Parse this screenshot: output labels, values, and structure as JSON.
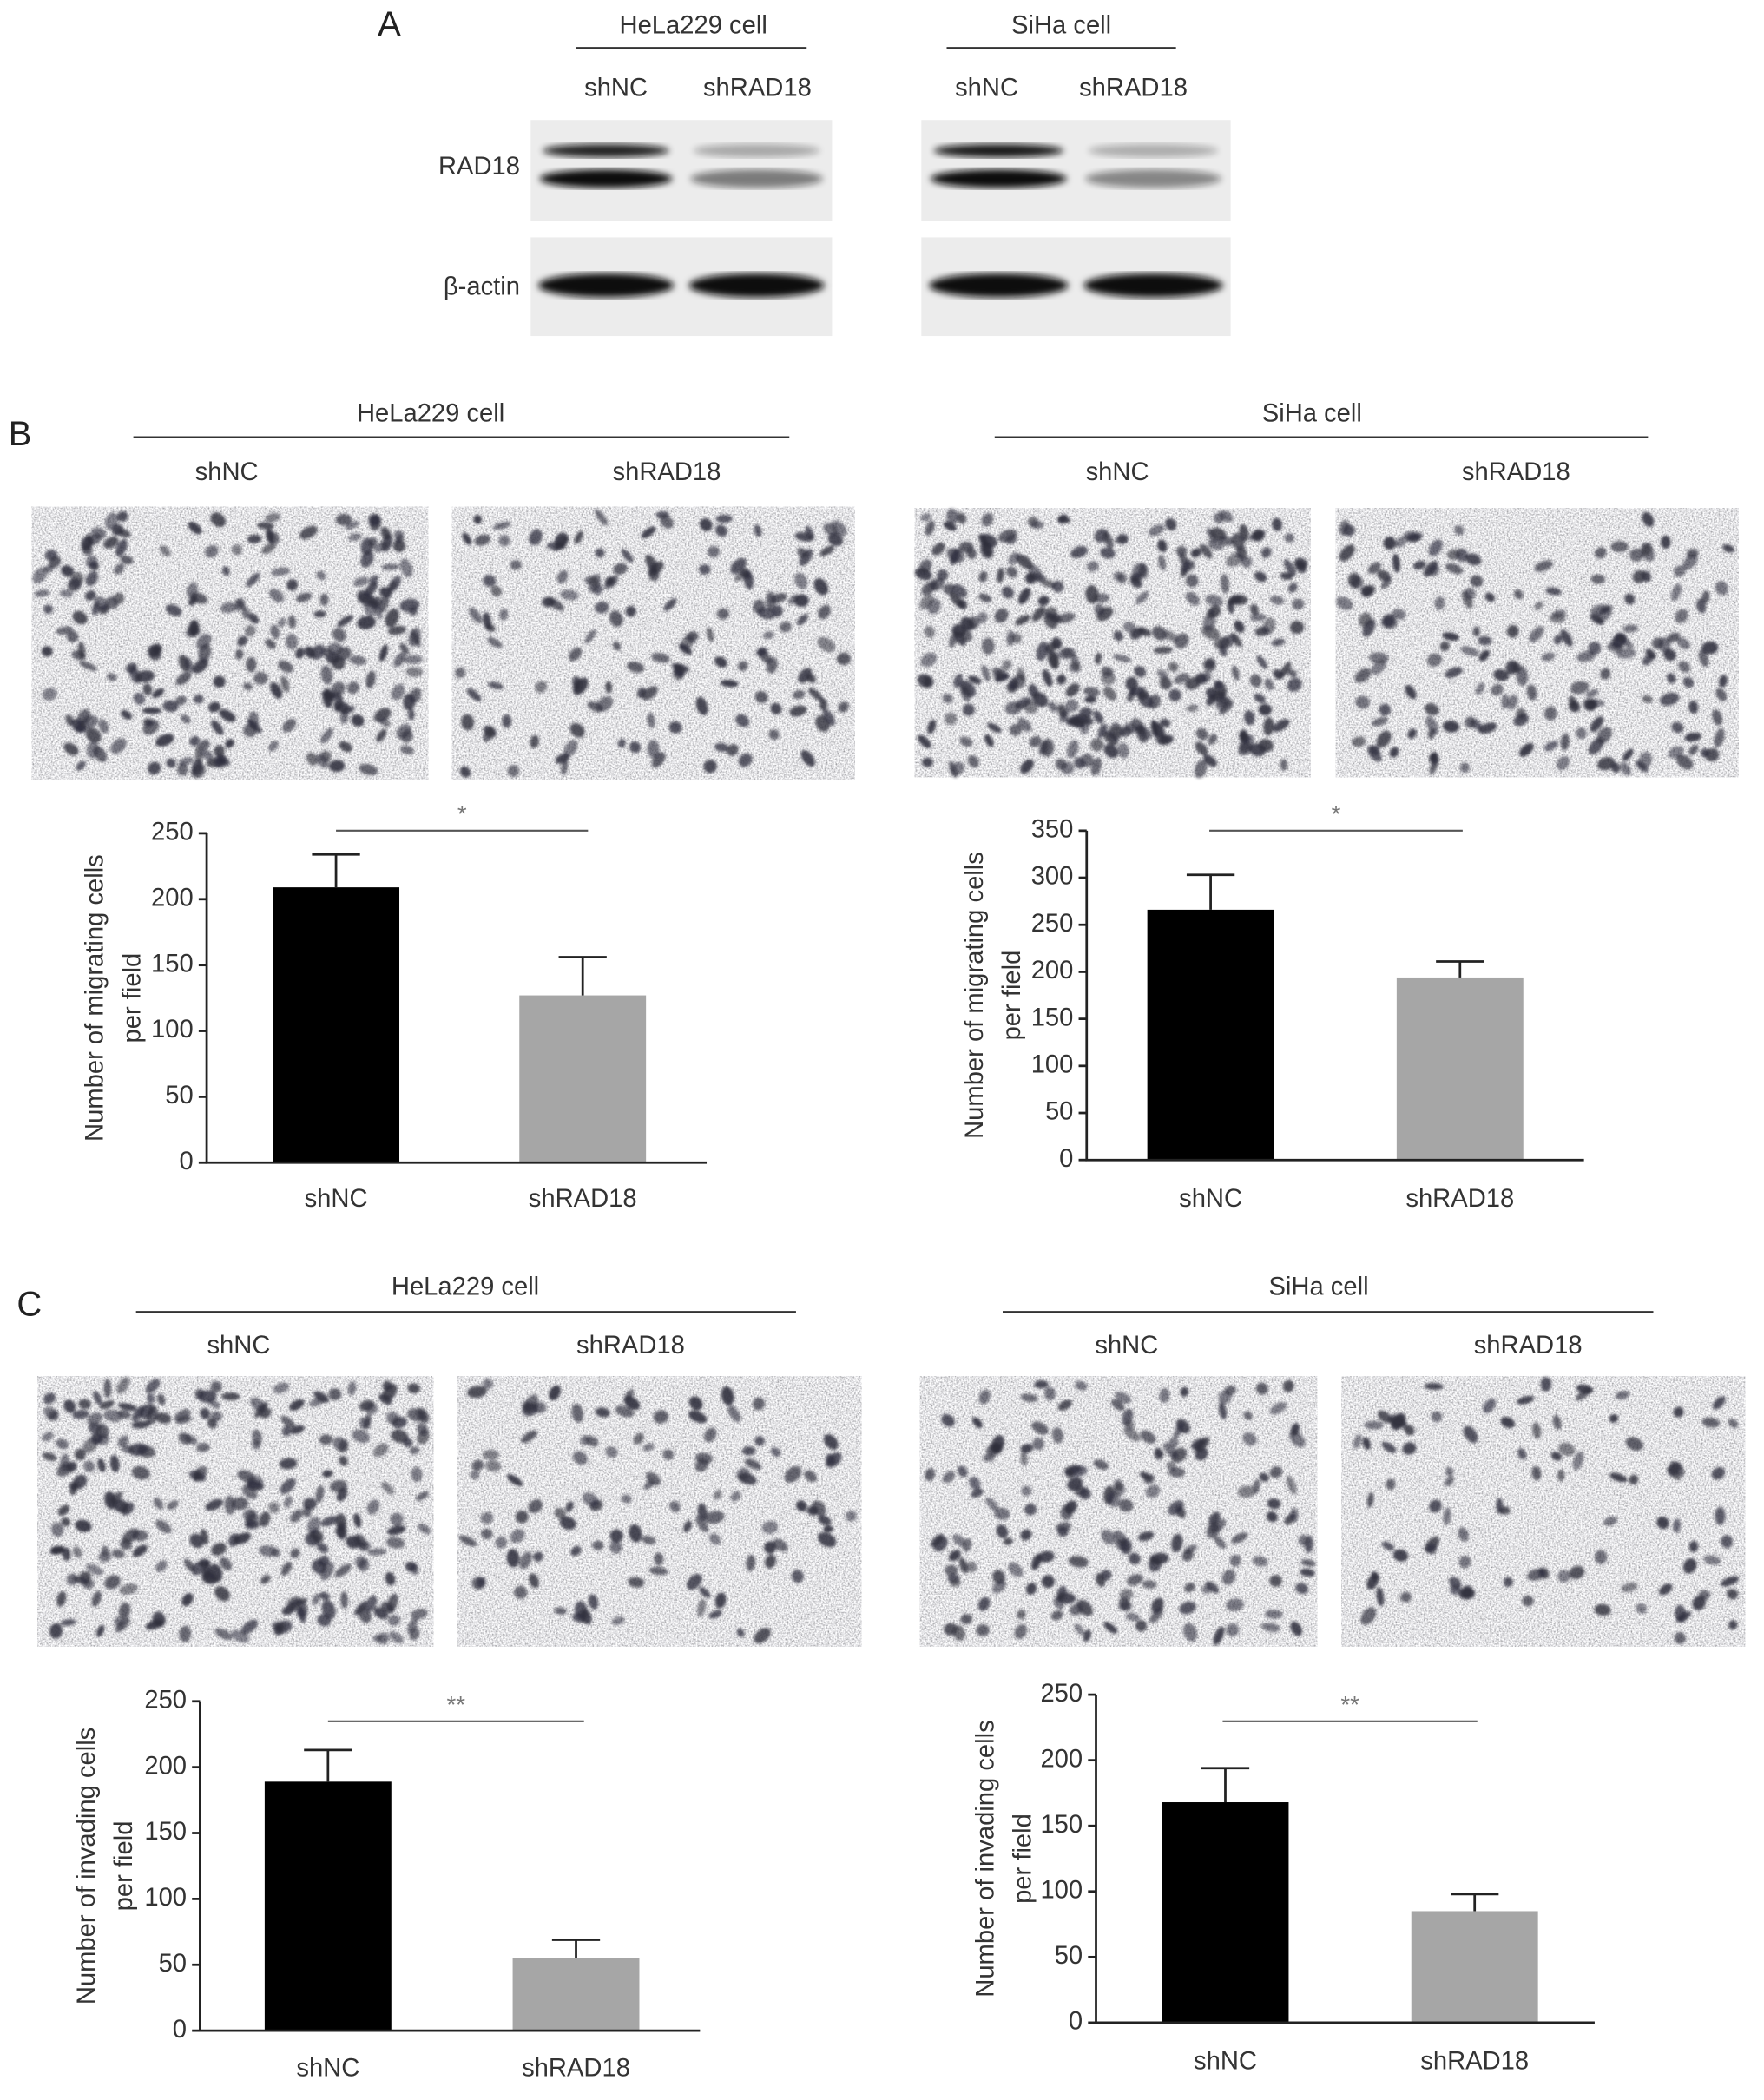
{
  "panel_a": {
    "label": "A",
    "rows": [
      "RAD18",
      "β-actin"
    ],
    "groups": [
      {
        "title": "HeLa229 cell",
        "lanes": [
          "shNC",
          "shRAD18"
        ]
      },
      {
        "title": "SiHa cell",
        "lanes": [
          "shNC",
          "shRAD18"
        ]
      }
    ]
  },
  "panel_b": {
    "label": "B",
    "groups": [
      {
        "title": "HeLa229 cell",
        "lanes": [
          "shNC",
          "shRAD18"
        ]
      },
      {
        "title": "SiHa cell",
        "lanes": [
          "shNC",
          "shRAD18"
        ]
      }
    ]
  },
  "panel_c": {
    "label": "C",
    "groups": [
      {
        "title": "HeLa229 cell",
        "lanes": [
          "shNC",
          "shRAD18"
        ]
      },
      {
        "title": "SiHa cell",
        "lanes": [
          "shNC",
          "shRAD18"
        ]
      }
    ]
  },
  "chart_data": [
    {
      "type": "bar",
      "ylabel": [
        "Number of migrating cells",
        "per field"
      ],
      "categories": [
        "shNC",
        "shRAD18"
      ],
      "values": [
        209,
        127
      ],
      "errors": [
        25,
        29
      ],
      "colors": [
        "#000000",
        "#a6a6a6"
      ],
      "ylim": [
        0,
        250
      ],
      "yticks": [
        0,
        50,
        100,
        150,
        200,
        250
      ],
      "significance": "*"
    },
    {
      "type": "bar",
      "ylabel": [
        "Number of migrating cells",
        "per field"
      ],
      "categories": [
        "shNC",
        "shRAD18"
      ],
      "values": [
        266,
        194
      ],
      "errors": [
        37,
        17
      ],
      "colors": [
        "#000000",
        "#a6a6a6"
      ],
      "ylim": [
        0,
        350
      ],
      "yticks": [
        0,
        50,
        100,
        150,
        200,
        250,
        300,
        350
      ],
      "significance": "*"
    },
    {
      "type": "bar",
      "ylabel": [
        "Number of invading cells",
        "per field"
      ],
      "categories": [
        "shNC",
        "shRAD18"
      ],
      "values": [
        189,
        55
      ],
      "errors": [
        24,
        14
      ],
      "colors": [
        "#000000",
        "#a6a6a6"
      ],
      "ylim": [
        0,
        250
      ],
      "yticks": [
        0,
        50,
        100,
        150,
        200,
        250
      ],
      "significance": "**"
    },
    {
      "type": "bar",
      "ylabel": [
        "Number of invading cells",
        "per field"
      ],
      "categories": [
        "shNC",
        "shRAD18"
      ],
      "values": [
        168,
        85
      ],
      "errors": [
        26,
        13
      ],
      "colors": [
        "#000000",
        "#a6a6a6"
      ],
      "ylim": [
        0,
        250
      ],
      "yticks": [
        0,
        50,
        100,
        150,
        200,
        250
      ],
      "significance": "**"
    }
  ]
}
